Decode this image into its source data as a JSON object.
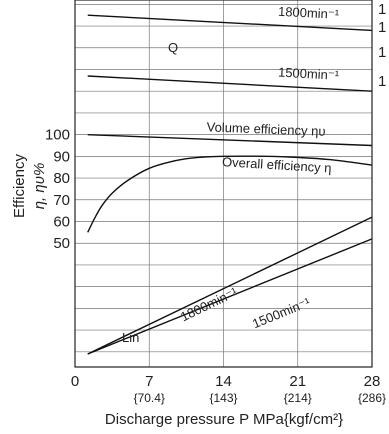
{
  "chart_data": {
    "type": "line",
    "xlabel": "Discharge pressure P MPa{kgf/cm²}",
    "ylabel": "Efficiency",
    "ylabel_sub": "η, ηυ%",
    "x_ticks": [
      {
        "value": 0,
        "label": "0",
        "sub": ""
      },
      {
        "value": 7,
        "label": "7",
        "sub": "{70.4}"
      },
      {
        "value": 14,
        "label": "14",
        "sub": "{143}"
      },
      {
        "value": 21,
        "label": "21",
        "sub": "{214}"
      },
      {
        "value": 28,
        "label": "28",
        "sub": "{286}"
      }
    ],
    "xlim": [
      0,
      28
    ],
    "y_ticks": [
      {
        "value": 50,
        "label": "50"
      },
      {
        "value": 60,
        "label": "60"
      },
      {
        "value": 70,
        "label": "70"
      },
      {
        "value": 80,
        "label": "80"
      },
      {
        "value": 90,
        "label": "90"
      },
      {
        "value": 100,
        "label": "100"
      }
    ],
    "ylim": [
      -7,
      162
    ],
    "grid": true,
    "right_edge_labels": [
      "1",
      "1",
      "1",
      "1"
    ],
    "group_labels": {
      "q": "Q",
      "lin": "Lin"
    },
    "series": [
      {
        "id": "q-1800",
        "name": "1800min⁻¹",
        "x": [
          1.2,
          28
        ],
        "y": [
          155,
          148
        ],
        "label_x": 22,
        "label_y": 154
      },
      {
        "id": "q-1500",
        "name": "1500min⁻¹",
        "x": [
          1.2,
          28
        ],
        "y": [
          127,
          120
        ],
        "label_x": 22,
        "label_y": 126
      },
      {
        "id": "volume-efficiency",
        "name": "Volume efficiency ηυ",
        "x": [
          1.2,
          28
        ],
        "y": [
          100,
          95
        ],
        "label_x": 18,
        "label_y": 100.5
      },
      {
        "id": "overall-efficiency",
        "name": "Overall efficiency η",
        "x": [
          1.2,
          1.8,
          2.5,
          3.5,
          5,
          7,
          9,
          11,
          14,
          18,
          21,
          24,
          28
        ],
        "y": [
          55,
          61,
          67,
          73,
          79,
          84.5,
          87.5,
          89.2,
          90,
          90,
          89.5,
          88.5,
          86
        ],
        "label_x": 19,
        "label_y": 84
      },
      {
        "id": "lin-1800",
        "name": "1800min⁻¹",
        "x": [
          1.2,
          28
        ],
        "y": [
          -1,
          62
        ],
        "label_x": 12.8,
        "label_y": 20
      },
      {
        "id": "lin-1500",
        "name": "1500min⁻¹",
        "x": [
          1.2,
          28
        ],
        "y": [
          -1,
          52
        ],
        "label_x": 19.6,
        "label_y": 16
      }
    ]
  }
}
